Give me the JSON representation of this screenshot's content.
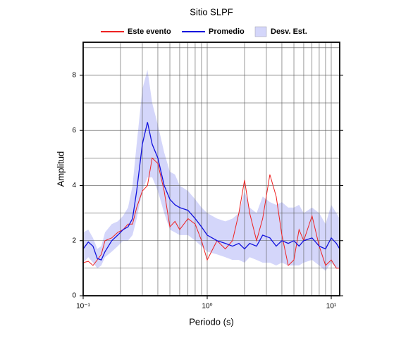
{
  "chart_data": {
    "type": "line",
    "title": "Sitio SLPF",
    "xlabel": "Periodo (s)",
    "ylabel": "Amplitud",
    "xscale": "log",
    "grid": true,
    "xlim": [
      0.1,
      11.7
    ],
    "ylim": [
      0,
      9.2
    ],
    "xticks": [
      {
        "value": 0.1,
        "label": "10⁻¹"
      },
      {
        "value": 1,
        "label": "10⁰"
      },
      {
        "value": 10,
        "label": "10¹"
      }
    ],
    "xminorticks": [
      0.2,
      0.3,
      0.4,
      0.5,
      0.6,
      0.7,
      0.8,
      0.9,
      2,
      3,
      4,
      5,
      6,
      7,
      8,
      9
    ],
    "yticks": [
      0,
      2,
      4,
      6,
      8
    ],
    "yminorticks": [
      1,
      3,
      5,
      7,
      9
    ],
    "x": [
      0.1,
      0.11,
      0.12,
      0.13,
      0.14,
      0.15,
      0.17,
      0.19,
      0.21,
      0.23,
      0.25,
      0.27,
      0.3,
      0.33,
      0.36,
      0.4,
      0.45,
      0.5,
      0.55,
      0.6,
      0.7,
      0.8,
      0.9,
      1.0,
      1.2,
      1.4,
      1.6,
      1.8,
      2.0,
      2.2,
      2.5,
      2.8,
      3.2,
      3.6,
      4,
      4.5,
      5,
      5.5,
      6,
      7,
      8,
      9,
      10,
      11,
      11.7
    ],
    "series": [
      {
        "name": "Este evento",
        "color": "#ee2222",
        "values": [
          1.2,
          1.25,
          1.1,
          1.3,
          1.5,
          2.0,
          2.1,
          2.3,
          2.4,
          2.6,
          2.6,
          3.2,
          3.8,
          4.0,
          5.0,
          4.8,
          3.8,
          2.5,
          2.7,
          2.4,
          2.8,
          2.6,
          2.0,
          1.3,
          2.0,
          1.7,
          2.0,
          3.0,
          4.2,
          3.0,
          2.0,
          2.8,
          4.4,
          3.6,
          2.2,
          1.1,
          1.3,
          2.4,
          2.0,
          2.9,
          1.8,
          1.1,
          1.3,
          1.0,
          1.0
        ]
      },
      {
        "name": "Promedio",
        "color": "#1111dd",
        "values": [
          1.7,
          1.95,
          1.8,
          1.35,
          1.3,
          1.6,
          2.0,
          2.2,
          2.4,
          2.5,
          2.8,
          3.8,
          5.5,
          6.3,
          5.5,
          5.0,
          4.0,
          3.5,
          3.3,
          3.2,
          3.1,
          2.8,
          2.5,
          2.2,
          2.0,
          1.9,
          1.8,
          1.9,
          1.7,
          1.9,
          1.8,
          2.2,
          2.1,
          1.8,
          2.0,
          1.9,
          2.0,
          1.8,
          2.0,
          2.1,
          1.8,
          1.7,
          2.1,
          1.9,
          1.7
        ]
      },
      {
        "name": "Desv. Est.",
        "color": "#d4d6fa",
        "low": [
          1.2,
          1.4,
          1.2,
          1.0,
          1.1,
          1.4,
          1.6,
          1.8,
          2.0,
          2.0,
          2.2,
          2.8,
          3.8,
          4.3,
          4.3,
          3.8,
          3.0,
          2.4,
          2.3,
          2.2,
          2.2,
          2.0,
          1.8,
          1.6,
          1.5,
          1.4,
          1.3,
          1.3,
          1.2,
          1.4,
          1.3,
          1.2,
          1.2,
          1.1,
          1.2,
          1.1,
          1.1,
          1.1,
          1.2,
          1.3,
          1.1,
          0.9,
          1.2,
          1.0,
          1.0
        ],
        "high": [
          2.3,
          2.4,
          2.1,
          1.7,
          1.8,
          2.3,
          2.6,
          2.7,
          2.9,
          3.2,
          4.0,
          5.5,
          7.5,
          8.2,
          7.0,
          6.2,
          5.2,
          4.5,
          4.4,
          4.0,
          3.8,
          3.5,
          3.2,
          3.0,
          2.8,
          2.7,
          2.8,
          3.0,
          3.8,
          3.2,
          3.0,
          3.6,
          3.4,
          3.3,
          3.4,
          3.2,
          3.2,
          3.3,
          3.0,
          3.2,
          3.0,
          2.6,
          3.3,
          3.0,
          2.8
        ]
      }
    ]
  }
}
